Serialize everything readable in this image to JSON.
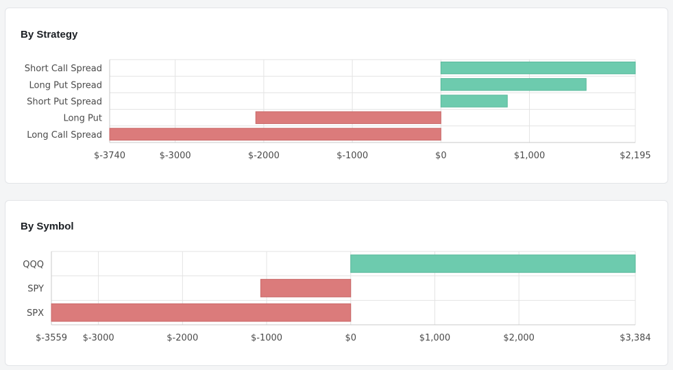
{
  "colors": {
    "positive": "#6dcbae",
    "negative": "#db7b7b",
    "grid": "#e3e3e3",
    "text": "#4a4a4a"
  },
  "chart_data": [
    {
      "type": "bar",
      "orientation": "horizontal",
      "title": "By Strategy",
      "categories": [
        "Short Call Spread",
        "Long Put Spread",
        "Short Put Spread",
        "Long Put",
        "Long Call Spread"
      ],
      "values": [
        2195,
        1640,
        750,
        -2090,
        -3740
      ],
      "xlim": [
        -3740,
        2195
      ],
      "xticks": [
        -3740,
        -3000,
        -2000,
        -1000,
        0,
        1000,
        2195
      ],
      "xtick_labels": [
        "$-3740",
        "$-3000",
        "$-2000",
        "$-1000",
        "$0",
        "$1,000",
        "$2,195"
      ],
      "grid": true
    },
    {
      "type": "bar",
      "orientation": "horizontal",
      "title": "By Symbol",
      "categories": [
        "QQQ",
        "SPY",
        "SPX"
      ],
      "values": [
        3384,
        -1070,
        -3559
      ],
      "xlim": [
        -3559,
        3384
      ],
      "xticks": [
        -3559,
        -3000,
        -2000,
        -1000,
        0,
        1000,
        2000,
        3384
      ],
      "xtick_labels": [
        "$-3559",
        "$-3000",
        "$-2000",
        "$-1000",
        "$0",
        "$1,000",
        "$2,000",
        "$3,384"
      ],
      "grid": true
    }
  ]
}
